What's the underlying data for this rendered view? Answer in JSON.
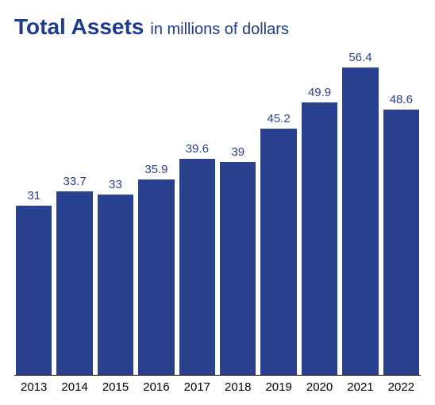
{
  "chart": {
    "type": "bar",
    "title_main": "Total Assets",
    "title_sub": "in millions of dollars",
    "title_color": "#1f3a93",
    "title_main_fontsize": 28,
    "title_sub_fontsize": 20,
    "bar_color": "#29418f",
    "value_label_color": "#29418f",
    "background_color": "#ffffff",
    "axis_color": "#000000",
    "y_max": 60,
    "bars": [
      {
        "category": "2013",
        "value": 31,
        "label": "31"
      },
      {
        "category": "2014",
        "value": 33.7,
        "label": "33.7"
      },
      {
        "category": "2015",
        "value": 33,
        "label": "33"
      },
      {
        "category": "2016",
        "value": 35.9,
        "label": "35.9"
      },
      {
        "category": "2017",
        "value": 39.6,
        "label": "39.6"
      },
      {
        "category": "2018",
        "value": 39,
        "label": "39"
      },
      {
        "category": "2019",
        "value": 45.2,
        "label": "45.2"
      },
      {
        "category": "2020",
        "value": 49.9,
        "label": "49.9"
      },
      {
        "category": "2021",
        "value": 56.4,
        "label": "56.4"
      },
      {
        "category": "2022",
        "value": 48.6,
        "label": "48.6"
      }
    ]
  }
}
